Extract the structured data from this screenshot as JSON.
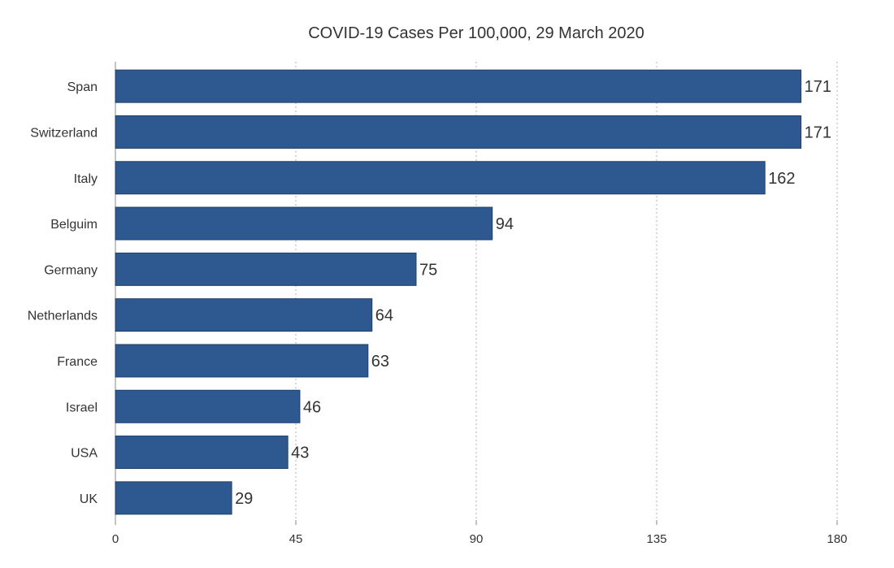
{
  "chart_data": {
    "type": "bar",
    "orientation": "horizontal",
    "title": "COVID-19 Cases Per 100,000, 29 March 2020",
    "xlabel": "",
    "ylabel": "",
    "categories": [
      "Span",
      "Switzerland",
      "Italy",
      "Belguim",
      "Germany",
      "Netherlands",
      "France",
      "Israel",
      "USA",
      "UK"
    ],
    "values": [
      171,
      171,
      162,
      94,
      75,
      64,
      63,
      46,
      43,
      29
    ],
    "xlim": [
      0,
      180
    ],
    "xticks": [
      0,
      45,
      90,
      135,
      180
    ],
    "grid": "vertical-dotted",
    "legend": "none",
    "bar_color": "#2e5990",
    "data_labels": true
  }
}
